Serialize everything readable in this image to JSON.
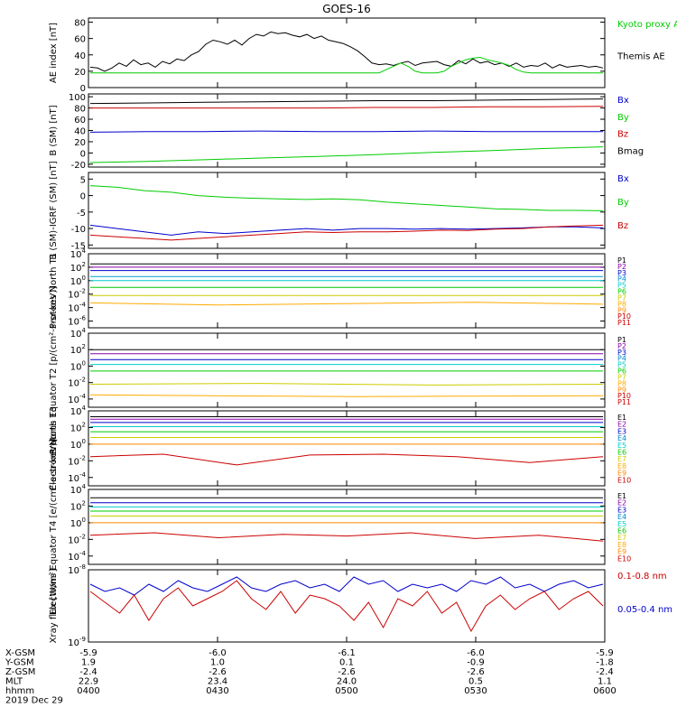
{
  "title": "GOES-16",
  "colors": {
    "black": "#000000",
    "green": "#00cc00",
    "blue": "#0000cc",
    "red": "#cc0000",
    "cyan": "#00cccc",
    "teal": "#00a0a0",
    "yellow": "#ffdd00",
    "orange": "#ff8800",
    "purple": "#8800aa",
    "navy": "#000088"
  },
  "chart_data": [
    {
      "id": "ae",
      "type": "line",
      "ylabel": "AE index [nT]",
      "yticks": [
        0,
        20,
        40,
        60,
        80
      ],
      "ylim": [
        0,
        85
      ],
      "legend": [
        {
          "label": "Kyoto proxy AE",
          "color": "#00cc00"
        },
        {
          "label": "Themis AE",
          "color": "#000000"
        }
      ],
      "series": [
        {
          "name": "Themis AE",
          "color": "#000000",
          "values": [
            25,
            24,
            20,
            24,
            30,
            26,
            34,
            28,
            30,
            25,
            32,
            29,
            35,
            33,
            40,
            44,
            53,
            58,
            56,
            53,
            58,
            52,
            60,
            65,
            63,
            68,
            66,
            67,
            64,
            62,
            65,
            60,
            63,
            58,
            56,
            54,
            50,
            45,
            38,
            30,
            28,
            29,
            27,
            30,
            32,
            27,
            30,
            31,
            32,
            28,
            26,
            33,
            29,
            35,
            30,
            32,
            28,
            30,
            26,
            30,
            25,
            27,
            26,
            30,
            24,
            28,
            25,
            26,
            27,
            25,
            26,
            24
          ]
        },
        {
          "name": "Kyoto proxy AE",
          "color": "#00cc00",
          "values": [
            18,
            18,
            18,
            18,
            18,
            18,
            18,
            18,
            18,
            18,
            18,
            18,
            18,
            18,
            18,
            18,
            18,
            18,
            18,
            18,
            18,
            18,
            18,
            18,
            18,
            18,
            18,
            18,
            18,
            18,
            18,
            18,
            18,
            18,
            18,
            18,
            18,
            18,
            18,
            18,
            18,
            22,
            26,
            30,
            26,
            20,
            18,
            18,
            18,
            20,
            26,
            30,
            34,
            36,
            37,
            34,
            32,
            30,
            27,
            22,
            19,
            18,
            18,
            18,
            18,
            18,
            18,
            18,
            18,
            18,
            18,
            18
          ]
        }
      ]
    },
    {
      "id": "bsm",
      "type": "line",
      "ylabel": "B (SM) [nT]",
      "yticks": [
        -20,
        0,
        20,
        40,
        60,
        80,
        100
      ],
      "ylim": [
        -25,
        105
      ],
      "legend": [
        {
          "label": "Bx",
          "color": "#0000cc"
        },
        {
          "label": "By",
          "color": "#00cc00"
        },
        {
          "label": "Bz",
          "color": "#cc0000"
        },
        {
          "label": "Bmag",
          "color": "#000000"
        }
      ],
      "series": [
        {
          "name": "Bmag",
          "color": "#000000",
          "values": [
            88,
            89,
            90,
            91,
            92,
            93,
            93,
            94,
            95,
            96
          ]
        },
        {
          "name": "Bz",
          "color": "#cc0000",
          "values": [
            80,
            80,
            80,
            80,
            80,
            81,
            81,
            82,
            82,
            83
          ]
        },
        {
          "name": "Bx",
          "color": "#0000cc",
          "values": [
            37,
            38,
            38,
            39,
            38,
            38,
            39,
            38,
            38,
            38
          ]
        },
        {
          "name": "By",
          "color": "#00cc00",
          "values": [
            -17,
            -15,
            -12,
            -9,
            -6,
            -3,
            1,
            4,
            8,
            11
          ]
        }
      ]
    },
    {
      "id": "bigrf",
      "type": "line",
      "ylabel": "B (SM)-IGRF (SM) [nT]",
      "yticks": [
        -15,
        -10,
        -5,
        0,
        5
      ],
      "ylim": [
        -16,
        7
      ],
      "legend": [
        {
          "label": "Bx",
          "color": "#0000cc"
        },
        {
          "label": "By",
          "color": "#00cc00"
        },
        {
          "label": "Bz",
          "color": "#cc0000"
        }
      ],
      "series": [
        {
          "name": "By",
          "color": "#00cc00",
          "values": [
            3,
            2.5,
            1.5,
            1,
            0,
            -0.5,
            -0.8,
            -1,
            -1.2,
            -1,
            -1.3,
            -2,
            -2.5,
            -3,
            -3.5,
            -4,
            -4.2,
            -4.5,
            -4.5,
            -4.6
          ]
        },
        {
          "name": "Bx",
          "color": "#0000cc",
          "values": [
            -9,
            -10,
            -11,
            -12,
            -11,
            -11.5,
            -11,
            -10.5,
            -10,
            -10.5,
            -10,
            -10,
            -10.2,
            -10,
            -10.2,
            -10,
            -9.8,
            -9.5,
            -9.5,
            -9.8
          ]
        },
        {
          "name": "Bz",
          "color": "#cc0000",
          "values": [
            -12,
            -12.5,
            -13,
            -13.5,
            -13,
            -12.5,
            -12,
            -11.5,
            -11,
            -11.2,
            -11,
            -11,
            -10.8,
            -10.5,
            -10.6,
            -10.2,
            -10,
            -9.5,
            -9.2,
            -9
          ]
        }
      ]
    },
    {
      "id": "p1",
      "type": "line",
      "ylabel": "Protons North T1",
      "yticks": [
        "10^4",
        "10^2",
        "10^0",
        "10^-2",
        "10^-4",
        "10^-6"
      ],
      "ylim": [
        -7,
        4
      ],
      "log": true,
      "legend": [
        "P1",
        "P2",
        "P3",
        "P4",
        "P5",
        "P6",
        "P7",
        "P8",
        "P9",
        "P10",
        "P11"
      ],
      "series": [
        {
          "name": "P1",
          "color": "#000000",
          "values": [
            2.5,
            2.5
          ]
        },
        {
          "name": "P2",
          "color": "#8800aa",
          "values": [
            2.0,
            2.0
          ]
        },
        {
          "name": "P3",
          "color": "#0000cc",
          "values": [
            1.5,
            1.5
          ]
        },
        {
          "name": "P4",
          "color": "#00a0cc",
          "values": [
            0.6,
            0.6
          ]
        },
        {
          "name": "P5",
          "color": "#00cccc",
          "values": [
            0.0,
            0.0
          ]
        },
        {
          "name": "P6",
          "color": "#00cc00",
          "values": [
            -1.0,
            -1.0
          ]
        },
        {
          "name": "P7",
          "color": "#cccc00",
          "values": [
            -2.2,
            -2.2
          ]
        },
        {
          "name": "P8",
          "color": "#ffaa00",
          "values": [
            -3.3,
            -3.6,
            -3.4,
            -3.2,
            -3.5
          ]
        }
      ]
    },
    {
      "id": "p2",
      "type": "line",
      "ylabel": "Protons Equator T2 [p/(cm²-s-sr-keV)]",
      "yticks": [
        "10^4",
        "10^2",
        "10^0",
        "10^-2",
        "10^-4"
      ],
      "ylim": [
        -5,
        4
      ],
      "log": true,
      "legend": [
        "P1",
        "P2",
        "P3",
        "P4",
        "P5",
        "P6",
        "P7",
        "P8",
        "P9",
        "P10",
        "P11"
      ],
      "series": [
        {
          "name": "P1",
          "color": "#000000",
          "values": [
            2.0,
            2.0
          ]
        },
        {
          "name": "P2",
          "color": "#8800aa",
          "values": [
            1.5,
            1.5
          ]
        },
        {
          "name": "P3",
          "color": "#0000cc",
          "values": [
            0.8,
            0.8
          ]
        },
        {
          "name": "P4",
          "color": "#00cccc",
          "values": [
            0.2,
            0.2
          ]
        },
        {
          "name": "P5",
          "color": "#00cc00",
          "values": [
            -0.6,
            -0.6
          ]
        },
        {
          "name": "P6",
          "color": "#cccc00",
          "values": [
            -2.2,
            -2.1,
            -2.3,
            -2.2
          ]
        },
        {
          "name": "P7",
          "color": "#ffaa00",
          "values": [
            -3.5,
            -3.7,
            -3.6
          ]
        }
      ]
    },
    {
      "id": "e1",
      "type": "line",
      "ylabel": "Electrons North T3",
      "yticks": [
        "10^4",
        "10^2",
        "10^0",
        "10^-2",
        "10^-4"
      ],
      "ylim": [
        -5,
        4
      ],
      "log": true,
      "legend": [
        "E1",
        "E2",
        "E3",
        "E4",
        "E5",
        "E6",
        "E7",
        "E8",
        "E9",
        "E10"
      ],
      "series": [
        {
          "name": "E1",
          "color": "#000000",
          "values": [
            3.3,
            3.3
          ]
        },
        {
          "name": "E2",
          "color": "#8800aa",
          "values": [
            3.0,
            3.0
          ]
        },
        {
          "name": "E3",
          "color": "#0000cc",
          "values": [
            2.6,
            2.6
          ]
        },
        {
          "name": "E4",
          "color": "#00cccc",
          "values": [
            2.1,
            2.1
          ]
        },
        {
          "name": "E5",
          "color": "#00cc00",
          "values": [
            1.5,
            1.5
          ]
        },
        {
          "name": "E6",
          "color": "#cccc00",
          "values": [
            0.8,
            0.8
          ]
        },
        {
          "name": "E7",
          "color": "#ff8800",
          "values": [
            0.0,
            0.0
          ]
        },
        {
          "name": "E8",
          "color": "#cc0000",
          "values": [
            -1.5,
            -1.2,
            -2.5,
            -1.3,
            -1.2,
            -1.5,
            -2.2,
            -1.5
          ]
        }
      ]
    },
    {
      "id": "e2",
      "type": "line",
      "ylabel": "Electrons Equator T4 [e/(cm²-s-sr-keV)]",
      "yticks": [
        "10^4",
        "10^2",
        "10^0",
        "10^-2",
        "10^-4"
      ],
      "ylim": [
        -5,
        4
      ],
      "log": true,
      "legend": [
        "E1",
        "E2",
        "E3",
        "E4",
        "E5",
        "E6",
        "E7",
        "E8",
        "E9",
        "E10"
      ],
      "series": [
        {
          "name": "E1",
          "color": "#000000",
          "values": [
            3.0,
            3.0
          ]
        },
        {
          "name": "E2",
          "color": "#0000cc",
          "values": [
            2.4,
            2.4
          ]
        },
        {
          "name": "E3",
          "color": "#00cccc",
          "values": [
            1.9,
            1.9
          ]
        },
        {
          "name": "E4",
          "color": "#00cc00",
          "values": [
            1.4,
            1.4
          ]
        },
        {
          "name": "E5",
          "color": "#cccc00",
          "values": [
            0.8,
            0.8
          ]
        },
        {
          "name": "E6",
          "color": "#ff8800",
          "values": [
            0.0,
            0.0
          ]
        },
        {
          "name": "E7",
          "color": "#cc0000",
          "values": [
            -1.5,
            -1.2,
            -1.8,
            -1.4,
            -1.6,
            -1.2,
            -1.9,
            -1.5,
            -2.2
          ]
        }
      ]
    },
    {
      "id": "xray",
      "type": "line",
      "ylabel": "Xray flux [W/m²]",
      "yticks": [
        "10^-8",
        "10^-9"
      ],
      "ylim": [
        -9,
        -8
      ],
      "log": true,
      "legend": [
        {
          "label": "0.1-0.8 nm",
          "color": "#cc0000"
        },
        {
          "label": "0.05-0.4 nm",
          "color": "#0000cc"
        }
      ],
      "series": [
        {
          "name": "0.05-0.4 nm",
          "color": "#0000cc",
          "values": [
            -8.2,
            -8.3,
            -8.25,
            -8.35,
            -8.2,
            -8.3,
            -8.15,
            -8.25,
            -8.3,
            -8.2,
            -8.1,
            -8.25,
            -8.3,
            -8.2,
            -8.15,
            -8.25,
            -8.2,
            -8.3,
            -8.1,
            -8.2,
            -8.15,
            -8.3,
            -8.2,
            -8.25,
            -8.2,
            -8.3,
            -8.15,
            -8.2,
            -8.1,
            -8.25,
            -8.2,
            -8.3,
            -8.2,
            -8.15,
            -8.25,
            -8.2
          ]
        },
        {
          "name": "0.1-0.8 nm",
          "color": "#cc0000",
          "values": [
            -8.3,
            -8.45,
            -8.6,
            -8.35,
            -8.7,
            -8.4,
            -8.25,
            -8.5,
            -8.4,
            -8.3,
            -8.15,
            -8.4,
            -8.55,
            -8.3,
            -8.6,
            -8.35,
            -8.4,
            -8.5,
            -8.7,
            -8.45,
            -8.8,
            -8.4,
            -8.5,
            -8.3,
            -8.6,
            -8.45,
            -8.85,
            -8.5,
            -8.35,
            -8.55,
            -8.4,
            -8.3,
            -8.55,
            -8.4,
            -8.3,
            -8.5
          ]
        }
      ]
    }
  ],
  "x_axis": {
    "rows": [
      {
        "label": "X-GSM",
        "values": [
          "-5.9",
          "-6.0",
          "-6.1",
          "-6.0",
          "-5.9"
        ]
      },
      {
        "label": "Y-GSM",
        "values": [
          "1.9",
          "1.0",
          "0.1",
          "-0.9",
          "-1.8"
        ]
      },
      {
        "label": "Z-GSM",
        "values": [
          "-2.4",
          "-2.6",
          "-2.6",
          "-2.6",
          "-2.4"
        ]
      },
      {
        "label": "MLT",
        "values": [
          "22.9",
          "23.4",
          "24.0",
          "0.5",
          "1.1"
        ]
      },
      {
        "label": "hhmm",
        "values": [
          "0400",
          "0430",
          "0500",
          "0530",
          "0600"
        ]
      }
    ],
    "date": "2019 Dec 29"
  }
}
